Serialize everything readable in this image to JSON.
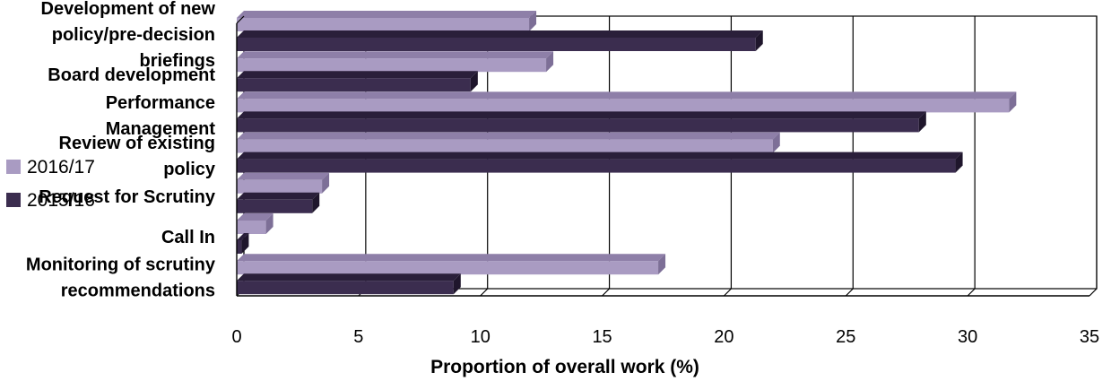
{
  "chart_data": {
    "type": "bar",
    "orientation": "horizontal",
    "categories": [
      "Development of new policy/pre-decision briefings",
      "Board development",
      "Performance Management",
      "Review of existing policy",
      "Request for Scrutiny",
      "Call In",
      "Monitoring of scrutiny recommendations"
    ],
    "series": [
      {
        "name": "2016/17",
        "values": [
          12,
          12.7,
          31.7,
          22,
          3.5,
          1.2,
          17.3
        ]
      },
      {
        "name": "2015/16",
        "values": [
          21.3,
          9.6,
          28,
          29.5,
          3.1,
          0.2,
          8.9
        ]
      }
    ],
    "xlabel": "Proportion of overall work (%)",
    "ylabel": "",
    "xlim": [
      0,
      35
    ],
    "xticks": [
      0,
      5,
      10,
      15,
      20,
      25,
      30,
      35
    ],
    "grid": true,
    "legend_position": "left",
    "colors": {
      "2016/17": "#a99bc2",
      "2015/16": "#3b2d4f"
    }
  }
}
